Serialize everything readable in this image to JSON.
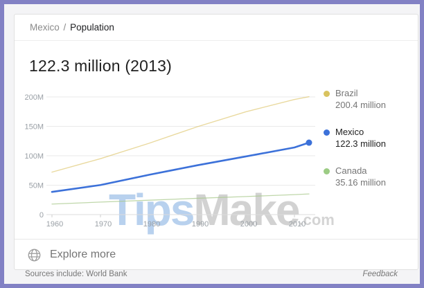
{
  "header": {
    "entity": "Mexico",
    "separator": "/",
    "attribute": "Population"
  },
  "headline": {
    "value": "122.3 million (2013)"
  },
  "colors": {
    "frame_border": "#8281c4",
    "mexico_blue": "#3c71d9",
    "brazil_yellow": "#dcc262",
    "canada_green": "#a9c98e",
    "watermark_blue": "rgba(141, 181, 227, 0.62)",
    "watermark_grey": "rgba(173, 173, 173, 0.55)",
    "watermark_grey_small": "rgba(183, 183, 183, 0.6)"
  },
  "watermark": {
    "part1": "Tips",
    "part2": "Make",
    "part3": ".com"
  },
  "legend": {
    "items": [
      {
        "label": "Brazil",
        "value": "200.4 million",
        "color": "#d9c35f",
        "selected": false
      },
      {
        "label": "Mexico",
        "value": "122.3 million",
        "color": "#3c71d9",
        "selected": true
      },
      {
        "label": "Canada",
        "value": "35.16 million",
        "color": "#9ccc84",
        "selected": false
      }
    ]
  },
  "explore": {
    "label": "Explore more",
    "icon": "globe-icon"
  },
  "footer": {
    "sources": "Sources include: World Bank",
    "feedback": "Feedback"
  },
  "chart_data": {
    "type": "line",
    "title": "Mexico Population",
    "xlabel": "",
    "ylabel": "",
    "unit": "million people",
    "grid": true,
    "legend_position": "right",
    "xlim": [
      1958.5,
      2014.5
    ],
    "ylim": [
      0,
      200
    ],
    "x": [
      1960,
      1970,
      1980,
      1990,
      2000,
      2010,
      2013
    ],
    "x_ticks": [
      1960,
      1970,
      1980,
      1990,
      2000,
      2010
    ],
    "y_ticks": [
      {
        "v": 0,
        "label": "0"
      },
      {
        "v": 50,
        "label": "50M"
      },
      {
        "v": 100,
        "label": "100M"
      },
      {
        "v": 150,
        "label": "150M"
      },
      {
        "v": 200,
        "label": "200M"
      }
    ],
    "series": [
      {
        "name": "Brazil",
        "color": "#dcc262",
        "opacity": 0.62,
        "width": 1.4,
        "end_dot": false,
        "values": [
          72.2,
          95.1,
          121.2,
          149.4,
          174.8,
          195.7,
          200.4
        ]
      },
      {
        "name": "Mexico",
        "color": "#3c71d9",
        "opacity": 1,
        "width": 2.6,
        "end_dot": true,
        "values": [
          38.6,
          50.3,
          67.6,
          83.9,
          98.9,
          114.1,
          122.3
        ]
      },
      {
        "name": "Canada",
        "color": "#a9c98e",
        "opacity": 0.75,
        "width": 1.3,
        "end_dot": false,
        "values": [
          17.9,
          21.3,
          24.5,
          27.7,
          30.7,
          34.0,
          35.16
        ]
      }
    ]
  }
}
